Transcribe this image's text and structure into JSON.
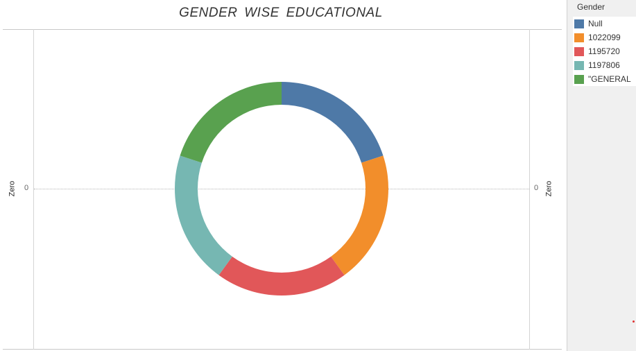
{
  "chart_data": {
    "type": "pie",
    "title": "GENDER  WISE  EDUCATIONAL",
    "legend_title": "Gender",
    "legend_placement": "right",
    "axis_title_left": "Zero",
    "axis_title_right": "Zero",
    "y_tick_left": "0",
    "y_tick_right": "0",
    "slices": [
      {
        "label": "Null",
        "value": 20,
        "color": "#4e79a7"
      },
      {
        "label": "1022099",
        "value": 20,
        "color": "#f28e2b"
      },
      {
        "label": "1195720",
        "value": 20,
        "color": "#e15759"
      },
      {
        "label": "1197806",
        "value": 20,
        "color": "#76b7b2"
      },
      {
        "label": "\"GENERAL",
        "value": 20,
        "color": "#59a14f"
      }
    ]
  }
}
